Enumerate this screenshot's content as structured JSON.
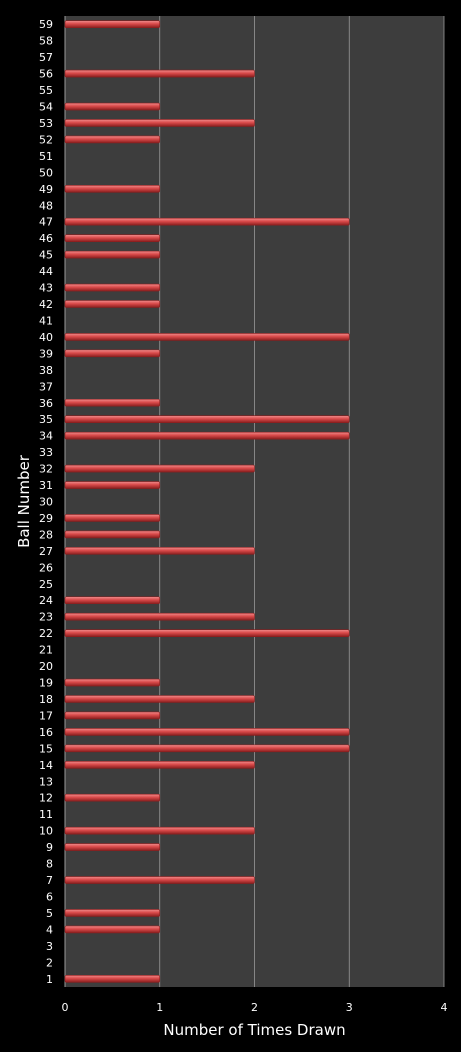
{
  "colors": {
    "page_background": "#000000",
    "plot_background": "#3d3d3d",
    "bar_fill": "#d94a4a",
    "bar_highlight": "#f08c8c",
    "bar_shadow": "#8a1e1e",
    "grid_line": "#9a9a9a",
    "text": "#ffffff"
  },
  "chart_data": {
    "type": "bar",
    "orientation": "horizontal",
    "title": "",
    "xlabel": "Number of Times Drawn",
    "ylabel": "Ball Number",
    "xlim": [
      0,
      4
    ],
    "x_ticks": [
      "0",
      "1",
      "2",
      "3",
      "4"
    ],
    "grid": "vertical major gridlines",
    "legend": "none",
    "categories": [
      "1",
      "2",
      "3",
      "4",
      "5",
      "6",
      "7",
      "8",
      "9",
      "10",
      "11",
      "12",
      "13",
      "14",
      "15",
      "16",
      "17",
      "18",
      "19",
      "20",
      "21",
      "22",
      "23",
      "24",
      "25",
      "26",
      "27",
      "28",
      "29",
      "30",
      "31",
      "32",
      "33",
      "34",
      "35",
      "36",
      "37",
      "38",
      "39",
      "40",
      "41",
      "42",
      "43",
      "44",
      "45",
      "46",
      "47",
      "48",
      "49",
      "50",
      "51",
      "52",
      "53",
      "54",
      "55",
      "56",
      "57",
      "58",
      "59"
    ],
    "values": [
      1,
      0,
      0,
      1,
      1,
      0,
      2,
      0,
      1,
      2,
      0,
      1,
      0,
      2,
      3,
      3,
      1,
      2,
      1,
      0,
      0,
      3,
      2,
      1,
      0,
      0,
      2,
      1,
      1,
      0,
      1,
      2,
      0,
      3,
      3,
      1,
      0,
      0,
      1,
      3,
      0,
      1,
      1,
      0,
      1,
      1,
      3,
      0,
      1,
      0,
      0,
      1,
      2,
      1,
      0,
      2,
      0,
      0,
      1
    ]
  }
}
